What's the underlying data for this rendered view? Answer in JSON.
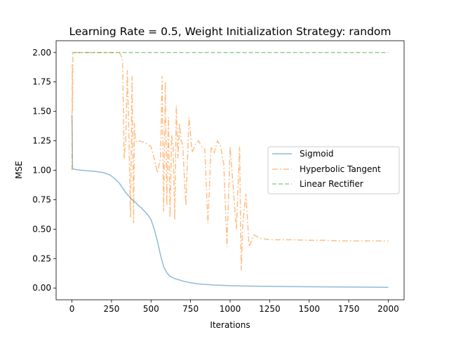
{
  "chart_data": {
    "type": "line",
    "title": "Learning Rate = 0.5, Weight Initialization Strategy: random",
    "xlabel": "Iterations",
    "ylabel": "MSE",
    "xlim": [
      -100,
      2100
    ],
    "ylim": [
      -0.1,
      2.1
    ],
    "xticks": [
      0,
      250,
      500,
      750,
      1000,
      1250,
      1500,
      1750,
      2000
    ],
    "yticks": [
      0.0,
      0.25,
      0.5,
      0.75,
      1.0,
      1.25,
      1.5,
      1.75,
      2.0
    ],
    "xtick_labels": [
      "0",
      "250",
      "500",
      "750",
      "1000",
      "1250",
      "1500",
      "1750",
      "2000"
    ],
    "ytick_labels": [
      "0.00",
      "0.25",
      "0.50",
      "0.75",
      "1.00",
      "1.25",
      "1.50",
      "1.75",
      "2.00"
    ],
    "legend_position": "center-right",
    "series": [
      {
        "name": "Sigmoid",
        "color": "#1f77b4",
        "style": "solid",
        "x": [
          0,
          2,
          4,
          10,
          30,
          60,
          100,
          150,
          200,
          240,
          270,
          300,
          320,
          340,
          360,
          380,
          400,
          420,
          440,
          460,
          480,
          500,
          520,
          540,
          560,
          580,
          600,
          620,
          650,
          700,
          750,
          800,
          900,
          1000,
          1100,
          1200,
          1400,
          1600,
          1800,
          2000
        ],
        "values": [
          1.47,
          1.3,
          1.01,
          1.01,
          1.005,
          1.0,
          0.995,
          0.99,
          0.98,
          0.96,
          0.93,
          0.89,
          0.85,
          0.81,
          0.78,
          0.75,
          0.73,
          0.7,
          0.68,
          0.65,
          0.62,
          0.58,
          0.5,
          0.4,
          0.28,
          0.18,
          0.13,
          0.1,
          0.08,
          0.06,
          0.045,
          0.035,
          0.025,
          0.02,
          0.017,
          0.015,
          0.012,
          0.01,
          0.008,
          0.006
        ]
      },
      {
        "name": "Hyperbolic Tangent",
        "color": "#ff7f0e",
        "style": "dashdot",
        "x": [
          0,
          2,
          4,
          6,
          10,
          30,
          100,
          200,
          300,
          320,
          330,
          340,
          350,
          360,
          370,
          380,
          390,
          395,
          400,
          410,
          420,
          450,
          480,
          500,
          520,
          540,
          560,
          570,
          580,
          590,
          600,
          610,
          620,
          630,
          640,
          650,
          660,
          670,
          680,
          690,
          700,
          720,
          740,
          760,
          780,
          800,
          820,
          840,
          860,
          880,
          900,
          920,
          940,
          960,
          980,
          1000,
          1020,
          1040,
          1060,
          1070,
          1080,
          1100,
          1120,
          1150,
          1200,
          1250,
          1300,
          1400,
          1500,
          1600,
          1700,
          1800,
          1900,
          2000
        ],
        "values": [
          1.0,
          1.9,
          1.5,
          2.0,
          2.0,
          2.0,
          2.0,
          2.0,
          2.0,
          1.95,
          1.1,
          1.25,
          1.85,
          1.3,
          0.6,
          1.8,
          0.55,
          1.4,
          1.26,
          1.24,
          1.25,
          1.24,
          1.22,
          1.2,
          1.1,
          0.98,
          1.1,
          1.8,
          0.65,
          1.75,
          0.7,
          1.45,
          0.6,
          1.3,
          1.2,
          0.58,
          1.55,
          1.1,
          1.4,
          1.25,
          1.22,
          0.7,
          1.45,
          1.15,
          1.22,
          1.25,
          1.2,
          1.18,
          0.55,
          1.2,
          1.15,
          1.25,
          1.2,
          1.05,
          0.35,
          1.2,
          0.85,
          0.5,
          1.2,
          0.15,
          0.55,
          0.8,
          0.35,
          0.45,
          0.42,
          0.41,
          0.41,
          0.41,
          0.405,
          0.405,
          0.4,
          0.4,
          0.4,
          0.4
        ]
      },
      {
        "name": "Linear Rectifier",
        "color": "#2ca02c",
        "style": "dashed",
        "x": [
          0,
          2000
        ],
        "values": [
          2.0,
          2.0
        ]
      }
    ]
  }
}
